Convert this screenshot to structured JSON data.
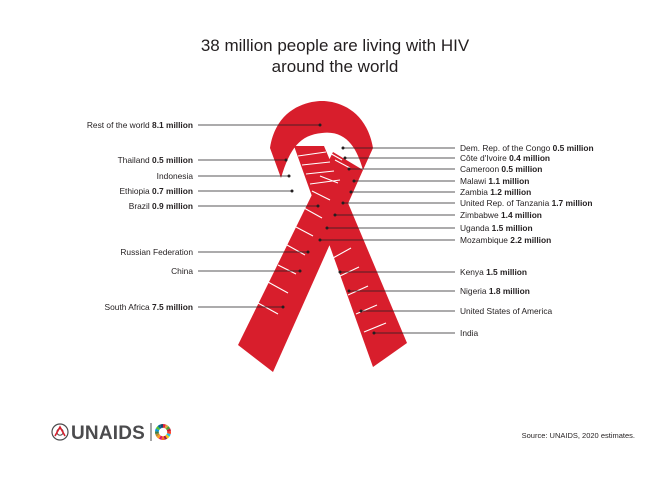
{
  "chart_data": {
    "type": "infographic",
    "title": "38 million people are living with HIV around the world",
    "title_lines": [
      "38 million people are living with HIV",
      "around the world"
    ],
    "unit": "million",
    "items": [
      {
        "label": "Rest of the world",
        "value": 8.1,
        "value_text": "8.1 million",
        "side": "left"
      },
      {
        "label": "Thailand",
        "value": 0.5,
        "value_text": "0.5 million",
        "side": "left"
      },
      {
        "label": "Indonesia",
        "value": null,
        "value_text": "",
        "side": "left"
      },
      {
        "label": "Ethiopia",
        "value": 0.7,
        "value_text": "0.7 million",
        "side": "left"
      },
      {
        "label": "Brazil",
        "value": 0.9,
        "value_text": "0.9 million",
        "side": "left"
      },
      {
        "label": "Russian Federation",
        "value": null,
        "value_text": "",
        "side": "left"
      },
      {
        "label": "China",
        "value": null,
        "value_text": "",
        "side": "left"
      },
      {
        "label": "South Africa",
        "value": 7.5,
        "value_text": "7.5 million",
        "side": "left"
      },
      {
        "label": "Dem. Rep. of the Congo",
        "value": 0.5,
        "value_text": "0.5 million",
        "side": "right"
      },
      {
        "label": "Côte d'Ivoire",
        "value": 0.4,
        "value_text": "0.4 million",
        "side": "right"
      },
      {
        "label": "Cameroon",
        "value": 0.5,
        "value_text": "0.5 million",
        "side": "right"
      },
      {
        "label": "Malawi",
        "value": 1.1,
        "value_text": "1.1 million",
        "side": "right"
      },
      {
        "label": "Zambia",
        "value": 1.2,
        "value_text": "1.2 million",
        "side": "right"
      },
      {
        "label": "United Rep. of Tanzania",
        "value": 1.7,
        "value_text": "1.7 million",
        "side": "right"
      },
      {
        "label": "Zimbabwe",
        "value": 1.4,
        "value_text": "1.4 million",
        "side": "right"
      },
      {
        "label": "Uganda",
        "value": 1.5,
        "value_text": "1.5 million",
        "side": "right"
      },
      {
        "label": "Mozambique",
        "value": 2.2,
        "value_text": "2.2 million",
        "side": "right"
      },
      {
        "label": "Kenya",
        "value": 1.5,
        "value_text": "1.5 million",
        "side": "right"
      },
      {
        "label": "Nigeria",
        "value": 1.8,
        "value_text": "1.8 million",
        "side": "right"
      },
      {
        "label": "United States of America",
        "value": null,
        "value_text": "",
        "side": "right"
      },
      {
        "label": "India",
        "value": null,
        "value_text": "",
        "side": "right"
      }
    ]
  },
  "colors": {
    "ribbon": "#d81e2c",
    "text": "#231f20",
    "logo_text": "#4b4b4d"
  },
  "footer": {
    "logo_text": "UNAIDS",
    "logo_icon": "un-emblem-icon",
    "sdg_icon": "sdg-wheel-icon",
    "source": "Source: UNAIDS, 2020 estimates."
  }
}
